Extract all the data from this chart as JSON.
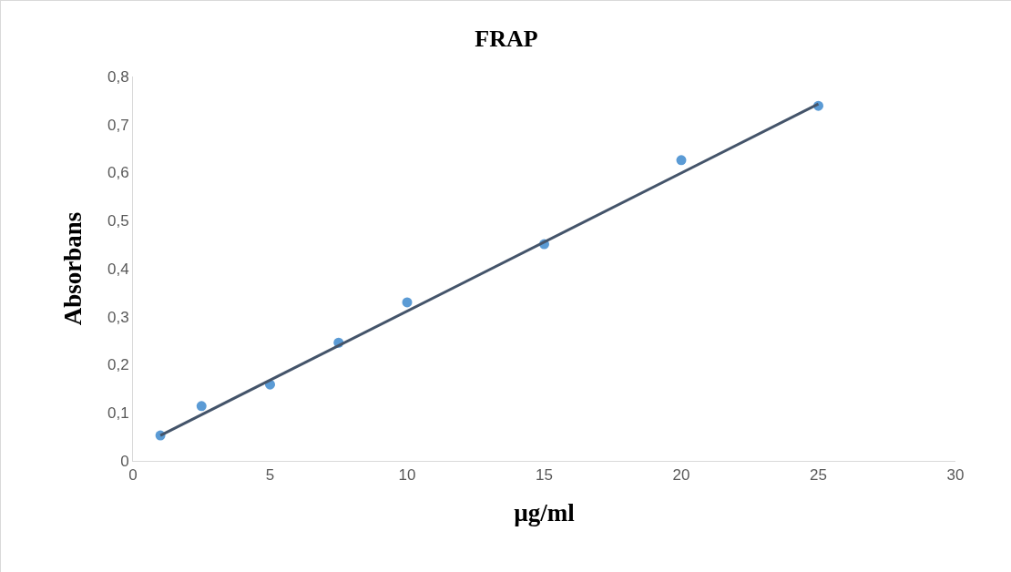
{
  "chart_data": {
    "type": "scatter",
    "title": "FRAP",
    "xlabel": "µg/ml",
    "ylabel": "Absorbans",
    "series": [
      {
        "type": "scatter",
        "color": "#5b9bd5",
        "marker": "circle",
        "x": [
          1,
          2.5,
          5,
          7.5,
          10,
          15,
          20,
          25
        ],
        "values": [
          0.053,
          0.114,
          0.159,
          0.246,
          0.33,
          0.451,
          0.626,
          0.739
        ]
      },
      {
        "type": "line",
        "color": "#44546a",
        "marker": "none",
        "x": [
          1,
          25
        ],
        "values": [
          0.053,
          0.743
        ]
      }
    ],
    "xlim": [
      0,
      30
    ],
    "xticks": [
      0,
      5,
      10,
      15,
      20,
      25,
      30
    ],
    "ylim": [
      0,
      0.8
    ],
    "yticks": [
      0,
      {
        "value": 0.1,
        "label": "0,1"
      },
      {
        "value": 0.2,
        "label": "0,2"
      },
      {
        "value": 0.3,
        "label": "0,3"
      },
      {
        "value": 0.4,
        "label": "0,4"
      },
      {
        "value": 0.5,
        "label": "0,5"
      },
      {
        "value": 0.6,
        "label": "0,6"
      },
      {
        "value": 0.7,
        "label": "0,7"
      },
      {
        "value": 0.8,
        "label": "0,8"
      }
    ],
    "grid": false
  }
}
